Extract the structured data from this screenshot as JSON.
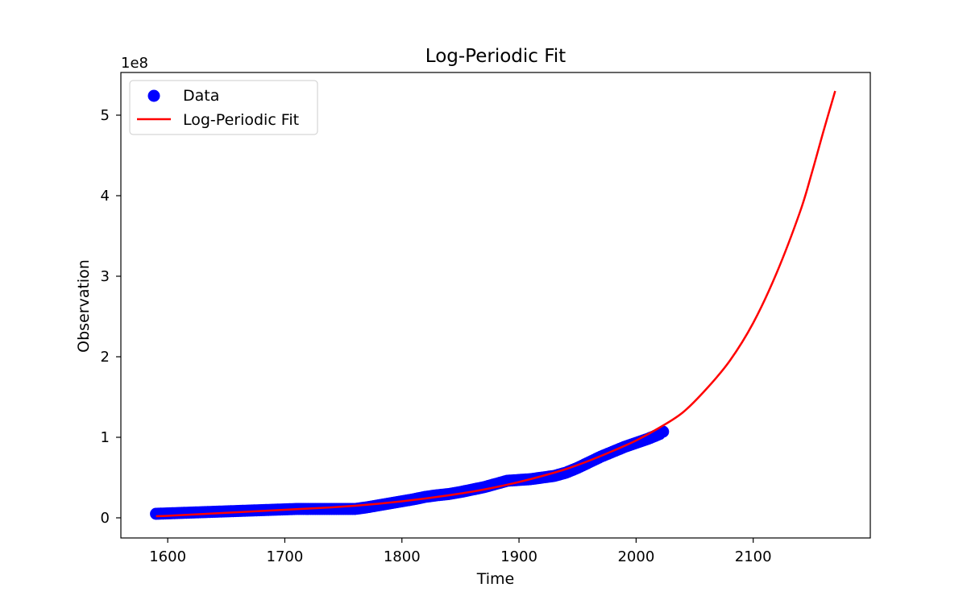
{
  "chart_data": {
    "type": "scatter",
    "title": "Log-Periodic Fit",
    "xlabel": "Time",
    "ylabel": "Observation",
    "y_offset_label": "1e8",
    "xlim": [
      1560,
      2200
    ],
    "ylim": [
      -0.25,
      5.53
    ],
    "y_scale_multiplier": 100000000,
    "xticks": [
      1600,
      1700,
      1800,
      1900,
      2000,
      2100
    ],
    "yticks": [
      0,
      1,
      2,
      3,
      4,
      5
    ],
    "grid": false,
    "legend_position": "top-left",
    "series": [
      {
        "name": "Data",
        "kind": "scatter",
        "color": "#0000ff",
        "x": [
          1590,
          1600,
          1610,
          1620,
          1630,
          1640,
          1650,
          1660,
          1670,
          1680,
          1690,
          1700,
          1710,
          1720,
          1730,
          1740,
          1750,
          1760,
          1770,
          1780,
          1790,
          1800,
          1810,
          1820,
          1830,
          1840,
          1850,
          1860,
          1870,
          1880,
          1890,
          1900,
          1910,
          1920,
          1930,
          1940,
          1950,
          1960,
          1970,
          1980,
          1990,
          2000,
          2010,
          2020,
          2023
        ],
        "y": [
          0.05,
          0.055,
          0.06,
          0.065,
          0.07,
          0.075,
          0.08,
          0.085,
          0.09,
          0.095,
          0.1,
          0.105,
          0.11,
          0.11,
          0.11,
          0.11,
          0.11,
          0.11,
          0.13,
          0.155,
          0.18,
          0.205,
          0.23,
          0.26,
          0.28,
          0.295,
          0.32,
          0.35,
          0.38,
          0.42,
          0.46,
          0.47,
          0.48,
          0.5,
          0.52,
          0.56,
          0.62,
          0.69,
          0.76,
          0.82,
          0.88,
          0.93,
          0.98,
          1.04,
          1.07
        ]
      },
      {
        "name": "Log-Periodic Fit",
        "kind": "line",
        "color": "#ff0000",
        "x": [
          1590,
          1600,
          1620,
          1640,
          1660,
          1680,
          1700,
          1720,
          1740,
          1760,
          1780,
          1800,
          1820,
          1840,
          1860,
          1880,
          1900,
          1920,
          1940,
          1960,
          1980,
          2000,
          2020,
          2040,
          2060,
          2080,
          2100,
          2120,
          2140,
          2150,
          2160,
          2170
        ],
        "y": [
          0.02,
          0.025,
          0.04,
          0.055,
          0.07,
          0.085,
          0.1,
          0.115,
          0.13,
          0.15,
          0.175,
          0.205,
          0.24,
          0.28,
          0.325,
          0.38,
          0.445,
          0.52,
          0.605,
          0.71,
          0.83,
          0.96,
          1.12,
          1.31,
          1.6,
          1.95,
          2.42,
          3.04,
          3.8,
          4.28,
          4.8,
          5.3
        ]
      }
    ]
  }
}
